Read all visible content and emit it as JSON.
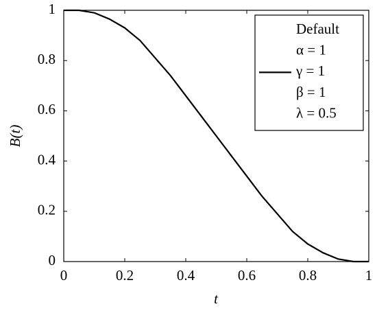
{
  "chart_data": {
    "type": "line",
    "x_label": "t",
    "y_label": "B(t)",
    "x": [
      0,
      0.05,
      0.1,
      0.15,
      0.2,
      0.25,
      0.3,
      0.35,
      0.4,
      0.45,
      0.5,
      0.55,
      0.6,
      0.65,
      0.7,
      0.75,
      0.8,
      0.85,
      0.9,
      0.95,
      1
    ],
    "series": [
      {
        "name": "γ = 1",
        "color": "#000000",
        "values": [
          1,
          1,
          0.99,
          0.965,
          0.93,
          0.88,
          0.81,
          0.74,
          0.66,
          0.58,
          0.5,
          0.42,
          0.34,
          0.26,
          0.19,
          0.12,
          0.07,
          0.035,
          0.01,
          0,
          0
        ]
      }
    ],
    "legend_notes": [
      "Default",
      "α = 1",
      "β = 1",
      "λ = 0.5"
    ],
    "legend_position": "upper right",
    "xlim": [
      0,
      1
    ],
    "ylim": [
      0,
      1
    ],
    "xticks": [
      0,
      0.2,
      0.4,
      0.6,
      0.8,
      1
    ],
    "yticks": [
      0,
      0.2,
      0.4,
      0.6,
      0.8,
      1
    ]
  }
}
